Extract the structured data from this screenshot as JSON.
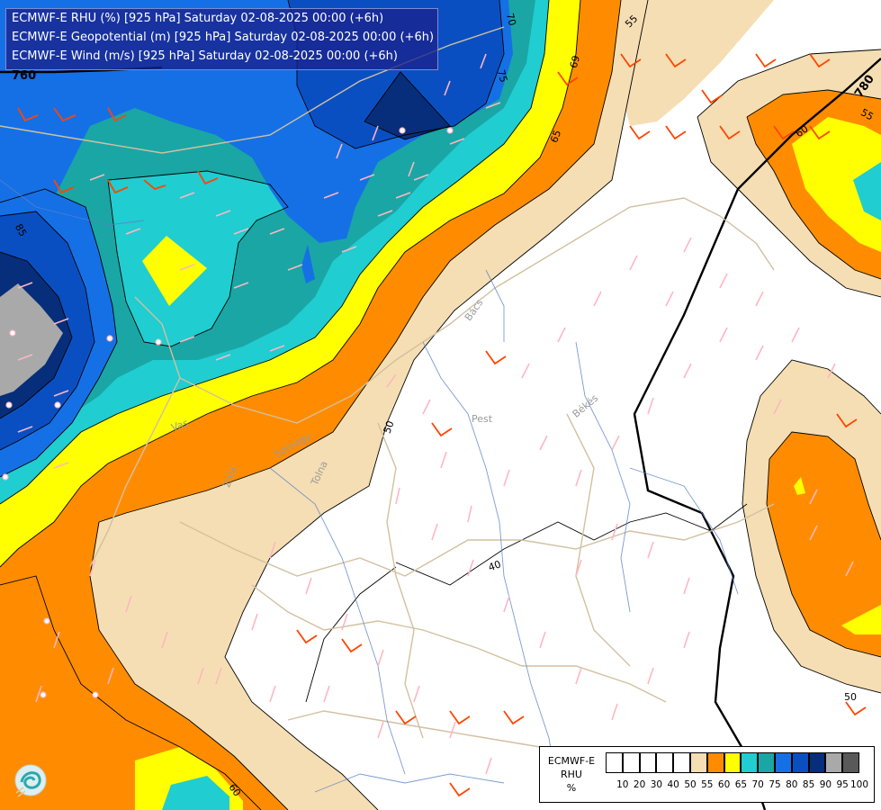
{
  "header": {
    "line1": "ECMWF-E RHU (%) [925 hPa] Saturday 02-08-2025 00:00 (+6h)",
    "line2": "ECMWF-E Geopotential (m) [925 hPa] Saturday 02-08-2025 00:00 (+6h)",
    "line3": "ECMWF-E Wind (m/s) [925 hPa] Saturday 02-08-2025 00:00 (+6h)"
  },
  "legend": {
    "model": "ECMWF-E",
    "variable": "RHU",
    "unit": "%",
    "swatch_colors": [
      "#ffffff",
      "#ffffff",
      "#ffffff",
      "#ffffff",
      "#ffffff",
      "#f5deb3",
      "#ff8c00",
      "#ffff00",
      "#20cdd0",
      "#1aa6a4",
      "#1570e6",
      "#0a4fc2",
      "#062e7a",
      "#a9a9a9",
      "#595959"
    ],
    "tick_labels": [
      "10",
      "20",
      "30",
      "40",
      "50",
      "55",
      "60",
      "65",
      "70",
      "75",
      "80",
      "85",
      "90",
      "95",
      "100"
    ]
  },
  "contour_labels": {
    "geo_760": "760",
    "geo_780": "780",
    "rh_70": "70",
    "rh_75": "75",
    "rh_69": "69",
    "rh_65": "65",
    "rh_55_top": "55",
    "rh_55_right": "55",
    "rh_60_right": "60",
    "rh_50_center": "50",
    "rh_40": "40",
    "rh_50_right": "50",
    "rh_60_bottom": "60",
    "rh_85": "85"
  },
  "places": [
    "Pest",
    "Békés",
    "Vas",
    "Somogy",
    "Tolna",
    "Zala",
    "Bács"
  ],
  "colors": {
    "rh55": "#f5deb3",
    "rh60": "#ff8c00",
    "rh65": "#ffff00",
    "rh70": "#20cdd0",
    "rh75": "#1aa6a4",
    "rh80": "#1570e6",
    "rh85": "#0a4fc2",
    "rh90": "#062e7a",
    "rh95": "#a9a9a9",
    "border": "#d2c0a0",
    "river": "#5a82c8",
    "wind_pink": "#ffb6c1",
    "wind_orange": "#ff4500"
  }
}
